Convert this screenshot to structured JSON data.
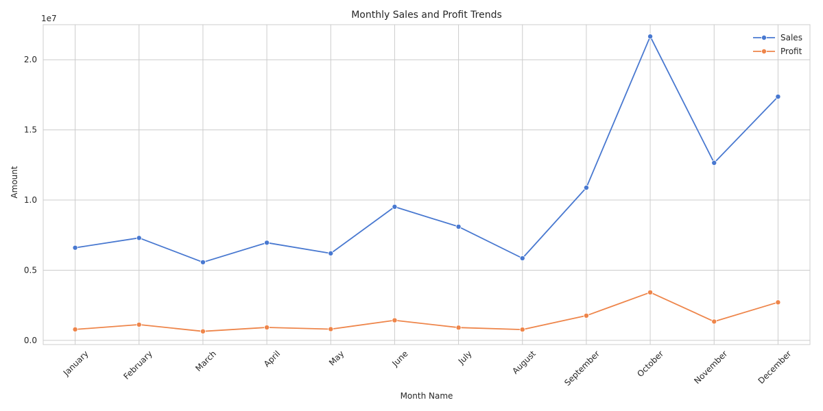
{
  "chart_data": {
    "type": "line",
    "title": "Monthly Sales and Profit Trends",
    "xlabel": "Month Name",
    "ylabel": "Amount",
    "y_offset_text": "1e7",
    "y_scale": 10000000,
    "ylim": [
      -0.03,
      2.25
    ],
    "y_ticks": [
      0.0,
      0.5,
      1.0,
      1.5,
      2.0
    ],
    "y_tick_labels": [
      "0.0",
      "0.5",
      "1.0",
      "1.5",
      "2.0"
    ],
    "grid": true,
    "legend_position": "top-right",
    "categories": [
      "January",
      "February",
      "March",
      "April",
      "May",
      "June",
      "July",
      "August",
      "September",
      "October",
      "November",
      "December"
    ],
    "series": [
      {
        "name": "Sales",
        "color": "#4878d0",
        "values": [
          6600000,
          7300000,
          5570000,
          6960000,
          6200000,
          9520000,
          8100000,
          5850000,
          10880000,
          21660000,
          12650000,
          17370000
        ]
      },
      {
        "name": "Profit",
        "color": "#ee854a",
        "values": [
          780000,
          1120000,
          640000,
          920000,
          800000,
          1430000,
          910000,
          770000,
          1760000,
          3420000,
          1340000,
          2710000
        ]
      }
    ]
  }
}
